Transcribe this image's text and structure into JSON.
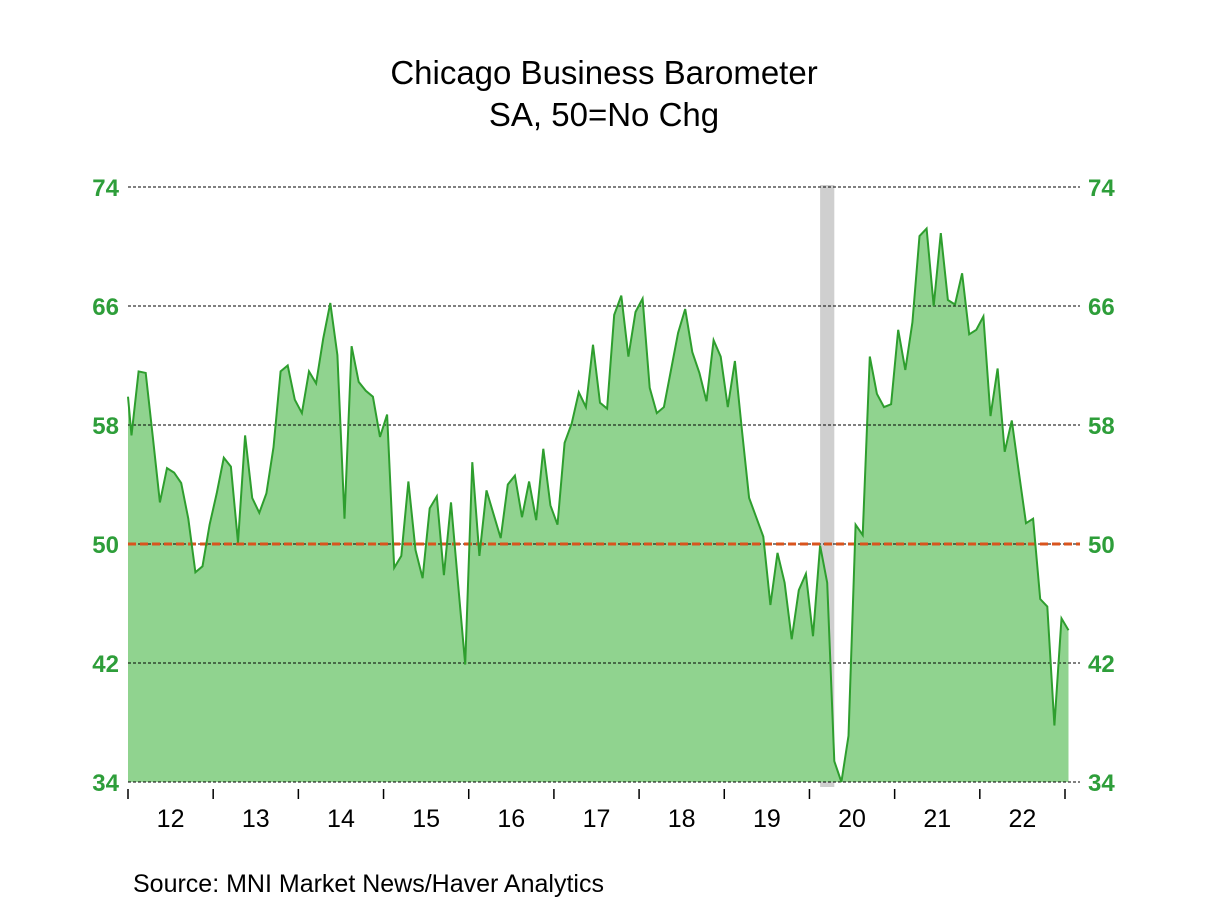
{
  "header": {
    "title": "Chicago Business Barometer",
    "subtitle": "SA, 50=No Chg"
  },
  "footer": {
    "source": "Source:  MNI Market News/Haver Analytics"
  },
  "colors": {
    "line": "#2e9e2e",
    "fill": "#90d38f",
    "axis_label": "#2e9e3a",
    "reference_line": "#d9541e",
    "grid": "#000000",
    "recession_band": "#cfcfcf"
  },
  "chart_data": {
    "type": "area",
    "title": "Chicago Business Barometer",
    "subtitle": "SA, 50=No Chg",
    "xlabel": "",
    "ylabel": "",
    "ylim": [
      34,
      74
    ],
    "yticks": [
      34,
      42,
      50,
      58,
      66,
      74
    ],
    "ytick_labels_both_sides": true,
    "grid": true,
    "reference_line": 50,
    "x_start": "2012-01",
    "x_end": "2023-01",
    "frequency": "monthly",
    "xtick_labels": [
      "12",
      "13",
      "14",
      "15",
      "16",
      "17",
      "18",
      "19",
      "20",
      "21",
      "22"
    ],
    "recession_shading": [
      {
        "start": "2020-02",
        "end": "2020-04"
      }
    ],
    "left_edge_value": 59.9,
    "series": [
      {
        "name": "Chicago Business Barometer",
        "values": [
          57.3,
          61.6,
          61.5,
          57.2,
          52.8,
          55.1,
          54.8,
          54.1,
          51.7,
          48.1,
          48.5,
          51.3,
          53.4,
          55.8,
          55.2,
          50.1,
          57.3,
          53.1,
          52.1,
          53.4,
          56.5,
          61.6,
          62.0,
          59.7,
          58.8,
          61.6,
          60.8,
          63.8,
          66.2,
          62.7,
          51.7,
          63.3,
          60.9,
          60.3,
          59.9,
          57.2,
          58.7,
          48.4,
          49.2,
          54.2,
          49.6,
          47.7,
          52.4,
          53.2,
          47.9,
          52.8,
          47.3,
          41.9,
          55.5,
          49.2,
          53.6,
          52.0,
          50.4,
          54.0,
          54.6,
          51.8,
          54.2,
          51.6,
          56.4,
          52.6,
          51.3,
          56.8,
          58.1,
          60.2,
          59.2,
          63.4,
          59.5,
          59.1,
          65.4,
          66.7,
          62.6,
          65.6,
          66.5,
          60.5,
          58.8,
          59.2,
          61.7,
          64.2,
          65.8,
          62.9,
          61.5,
          59.6,
          63.7,
          62.6,
          59.2,
          62.3,
          57.6,
          53.1,
          51.8,
          50.5,
          45.9,
          49.4,
          47.4,
          43.6,
          46.9,
          48.0,
          43.8,
          49.9,
          47.4,
          35.4,
          32.3,
          37.1,
          51.3,
          50.6,
          62.6,
          60.1,
          59.2,
          59.4,
          64.4,
          61.7,
          64.9,
          70.7,
          71.2,
          66.0,
          70.9,
          66.4,
          66.1,
          68.2,
          64.1,
          64.4,
          65.3,
          58.6,
          61.8,
          56.2,
          58.3,
          54.8,
          51.4,
          51.7,
          46.3,
          45.8,
          37.8,
          45.0,
          44.2
        ]
      }
    ],
    "source": "Source:  MNI Market News/Haver Analytics"
  }
}
